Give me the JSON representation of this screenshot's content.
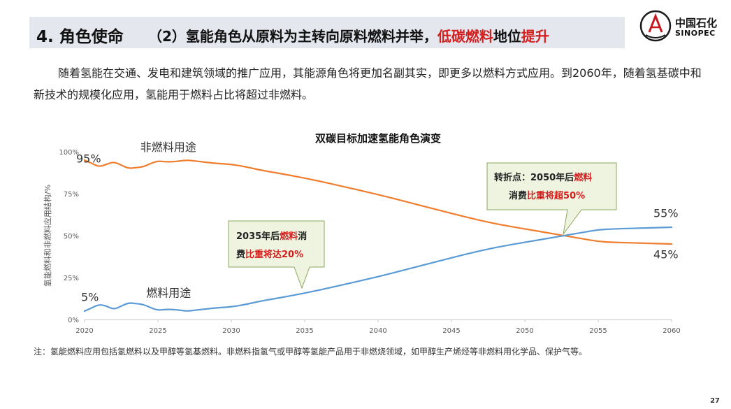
{
  "header": {
    "section": "4. 角色使命",
    "subtitle_prefix": "（2）氢能角色从原料为主转向原料燃料并举，",
    "subtitle_highlight1": "低碳燃料",
    "subtitle_middle": "地位",
    "subtitle_highlight2": "提升"
  },
  "logo": {
    "cn": "中国石化",
    "en": "SINOPEC"
  },
  "paragraph": "随着氢能在交通、发电和建筑领域的推广应用，其能源角色将更加名副其实，即更多以燃料方式应用。到2060年，随着氢基碳中和新技术的规模化应用，氢能用于燃料占比将超过非燃料。",
  "chart_data": {
    "type": "line",
    "title": "双碳目标加速氢能角色演变",
    "ylabel": "氢能燃料和非燃料应用结构/%",
    "xlabel": "",
    "xlim": [
      2020,
      2060
    ],
    "ylim": [
      0,
      100
    ],
    "x_ticks": [
      "2020",
      "2025",
      "2030",
      "2035",
      "2040",
      "2045",
      "2050",
      "2055",
      "2060"
    ],
    "y_ticks": [
      "0%",
      "25%",
      "50%",
      "75%",
      "100%"
    ],
    "grid": false,
    "series": [
      {
        "name": "非燃料用途",
        "color": "#f07d2e",
        "x": [
          2020,
          2020.5,
          2021,
          2021.5,
          2022,
          2022.5,
          2023,
          2023.5,
          2024,
          2024.5,
          2025,
          2025.5,
          2026,
          2026.5,
          2027,
          2027.5,
          2028,
          2029,
          2030,
          2031,
          2032,
          2034,
          2036,
          2038,
          2040,
          2042,
          2044,
          2046,
          2048,
          2050,
          2052,
          2054,
          2055,
          2056,
          2058,
          2060
        ],
        "y": [
          95,
          93,
          91,
          92.5,
          94,
          92,
          90,
          90.5,
          91,
          93,
          94.5,
          94,
          94,
          94.5,
          95,
          94.5,
          94,
          93,
          92.5,
          91,
          89,
          86,
          82.5,
          78.5,
          74.5,
          70,
          65.5,
          61,
          57,
          54,
          51,
          48,
          46.5,
          46,
          45.5,
          45
        ]
      },
      {
        "name": "燃料用途",
        "color": "#5b9bd5",
        "x": [
          2020,
          2020.5,
          2021,
          2021.5,
          2022,
          2022.5,
          2023,
          2023.5,
          2024,
          2024.5,
          2025,
          2025.5,
          2026,
          2026.5,
          2027,
          2027.5,
          2028,
          2029,
          2030,
          2031,
          2032,
          2034,
          2036,
          2038,
          2040,
          2042,
          2044,
          2046,
          2048,
          2050,
          2052,
          2054,
          2055,
          2056,
          2058,
          2060
        ],
        "y": [
          5,
          7,
          9,
          8,
          6,
          8,
          10,
          9.5,
          9,
          7,
          5.5,
          6,
          6,
          5.5,
          5,
          5.5,
          6,
          7,
          7.5,
          9,
          11,
          14,
          17.5,
          21.5,
          25.5,
          30,
          34.5,
          39,
          43,
          46,
          49,
          52,
          53.5,
          54,
          54.5,
          55
        ]
      }
    ],
    "annotations": {
      "start_top": "95%",
      "start_bottom": "5%",
      "end_top": "55%",
      "end_bottom": "45%",
      "callout1_line1_a": "2035年后",
      "callout1_line1_b": "燃料",
      "callout1_line1_c": "消",
      "callout1_line2_a": "费",
      "callout1_line2_b": "比重将达20%",
      "callout2_line1_a": "转折点：2050年后",
      "callout2_line1_b": "燃料",
      "callout2_line2_a": "消费",
      "callout2_line2_b": "比重将超50%"
    }
  },
  "footnote": "注：氢能燃料应用包括氢燃料以及甲醇等氢基燃料。非燃料指氢气或甲醇等氢能产品用于非燃烧领域，如甲醇生产烯烃等非燃料用化学品、保护气等。",
  "page_number": "27"
}
